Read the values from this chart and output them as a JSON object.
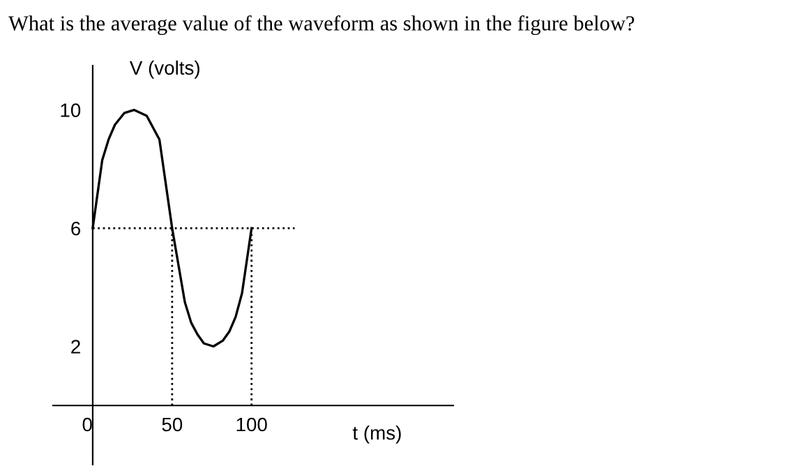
{
  "chart_data": {
    "type": "line",
    "title": "What is the average value of the waveform as shown in the figure below?",
    "xlabel": "t (ms)",
    "ylabel": "V (volts)",
    "x": [
      0,
      6,
      10,
      14,
      20,
      26,
      34,
      42,
      50,
      58,
      62,
      66,
      70,
      76,
      82,
      86,
      90,
      94,
      100
    ],
    "series": [
      {
        "color": "#000000",
        "values": [
          6,
          8.3,
          9.0,
          9.5,
          9.9,
          10,
          9.8,
          9,
          6,
          3.5,
          2.8,
          2.4,
          2.1,
          2.0,
          2.2,
          2.5,
          3,
          3.8,
          6
        ]
      }
    ],
    "xlim": [
      -25,
      227
    ],
    "ylim": [
      -2,
      11.5
    ],
    "xticks": [
      0,
      50,
      100
    ],
    "yticks": [
      2,
      6,
      10
    ],
    "ref_lines": [
      {
        "axis": "y",
        "value": 6,
        "line_style": "dotted"
      },
      {
        "axis": "x",
        "value": 50,
        "line_style": "dotted"
      },
      {
        "axis": "x",
        "value": 100,
        "line_style": "dotted"
      }
    ],
    "grid": false,
    "legend": false,
    "marker": "none",
    "line_style": "solid"
  }
}
